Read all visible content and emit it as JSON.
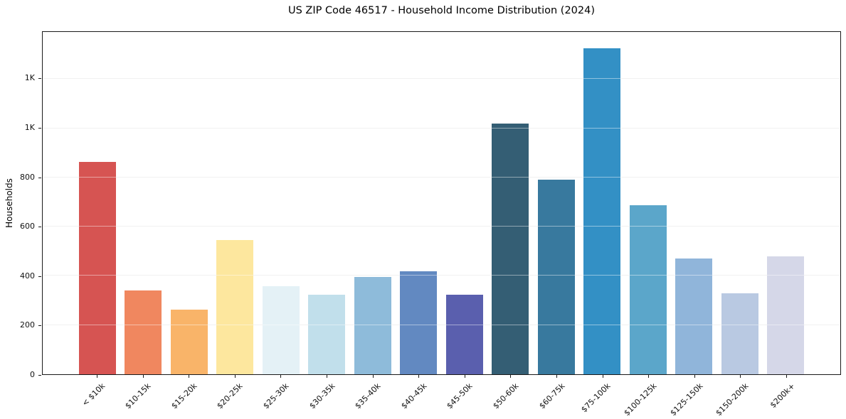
{
  "chart_data": {
    "type": "bar",
    "title": "US ZIP Code 46517 - Household Income Distribution (2024)",
    "xlabel": "",
    "ylabel": "Households",
    "categories": [
      "< $10k",
      "$10-15k",
      "$15-20k",
      "$20-25k",
      "$25-30k",
      "$30-35k",
      "$35-40k",
      "$40-45k",
      "$45-50k",
      "$50-60k",
      "$60-75k",
      "$75-100k",
      "$100-125k",
      "$125-150k",
      "$150-200k",
      "$200k+"
    ],
    "values": [
      862,
      340,
      264,
      546,
      359,
      324,
      396,
      419,
      324,
      1019,
      791,
      1324,
      688,
      470,
      329,
      479
    ],
    "bar_colors": [
      "#d65452",
      "#f0875f",
      "#f9b469",
      "#fde79e",
      "#e4f1f6",
      "#c1dfeb",
      "#8ebbda",
      "#6289c1",
      "#5a5fae",
      "#345e74",
      "#38799e",
      "#3390c5",
      "#5ba6ca",
      "#90b5da",
      "#b9c9e2",
      "#d5d7e8"
    ],
    "ylim": [
      0,
      1391
    ],
    "yticks": [
      {
        "value": 0,
        "label": "0"
      },
      {
        "value": 200,
        "label": "200"
      },
      {
        "value": 400,
        "label": "400"
      },
      {
        "value": 600,
        "label": "600"
      },
      {
        "value": 800,
        "label": "800"
      },
      {
        "value": 1000,
        "label": "1K"
      },
      {
        "value": 1200,
        "label": "1K"
      }
    ],
    "grid": "horizontal",
    "legend": "none",
    "background_color": "#ffffff",
    "spine_color": "#1a1a1a",
    "grid_color": "#e6e6e6",
    "layout": {
      "bar_width_units": 0.8,
      "x_units_total": 17.38,
      "x_left_margin_units": 1.19
    }
  }
}
